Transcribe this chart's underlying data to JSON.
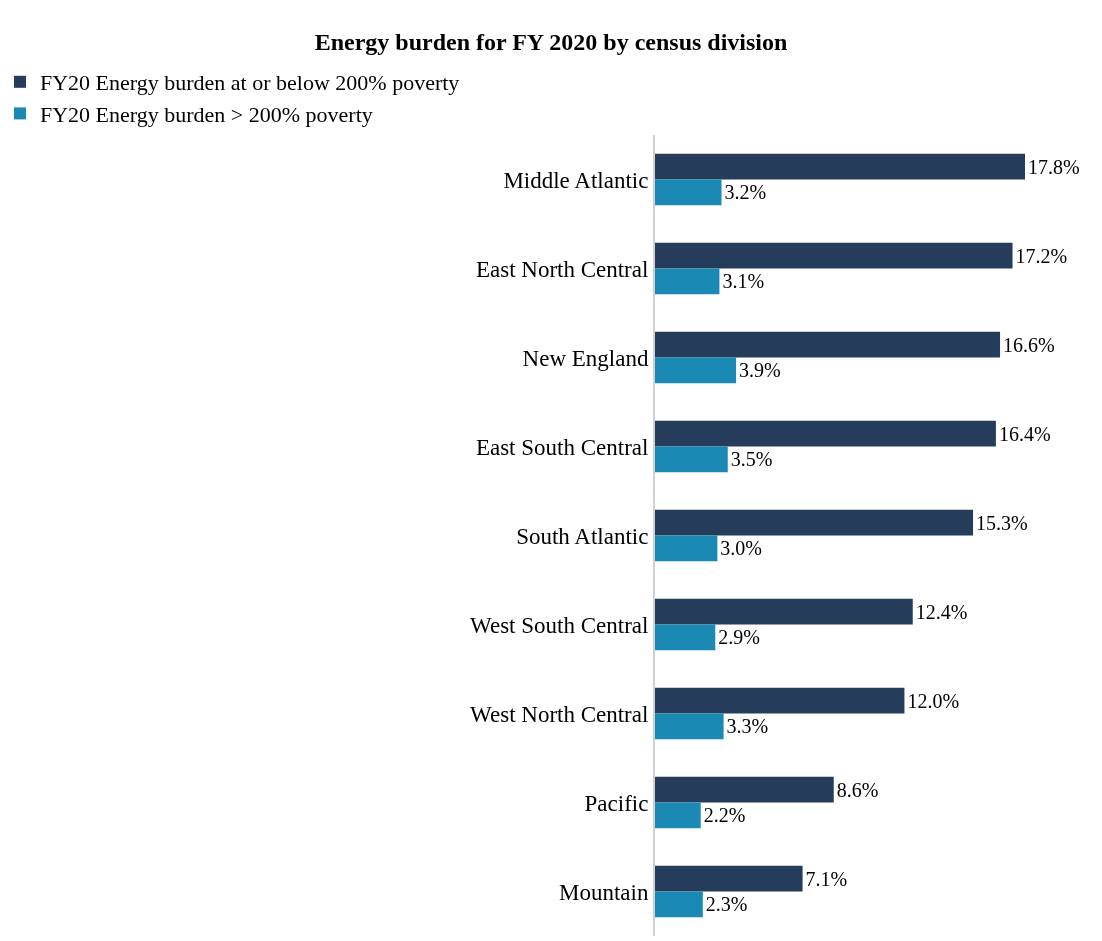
{
  "chart_data": {
    "type": "bar",
    "orientation": "horizontal",
    "title": "Energy burden for FY 2020 by census division",
    "categories": [
      "Middle Atlantic",
      "East North Central",
      "New England",
      "East South Central",
      "South Atlantic",
      "West South Central",
      "West North Central",
      "Pacific",
      "Mountain"
    ],
    "series": [
      {
        "name": "FY20 Energy burden at or below 200% poverty",
        "color": "#253d5b",
        "values": [
          17.8,
          17.2,
          16.6,
          16.4,
          15.3,
          12.4,
          12.0,
          8.6,
          7.1
        ],
        "value_labels": [
          "17.8%",
          "17.2%",
          "16.6%",
          "16.4%",
          "15.3%",
          "12.4%",
          "12.0%",
          "8.6%",
          "7.1%"
        ]
      },
      {
        "name": "FY20 Energy burden > 200% poverty",
        "color": "#1a8ab5",
        "values": [
          3.2,
          3.1,
          3.9,
          3.5,
          3.0,
          2.9,
          3.3,
          2.2,
          2.3
        ],
        "value_labels": [
          "3.2%",
          "3.1%",
          "3.9%",
          "3.5%",
          "3.0%",
          "2.9%",
          "3.3%",
          "2.2%",
          "2.3%"
        ]
      }
    ],
    "legend": "top"
  }
}
